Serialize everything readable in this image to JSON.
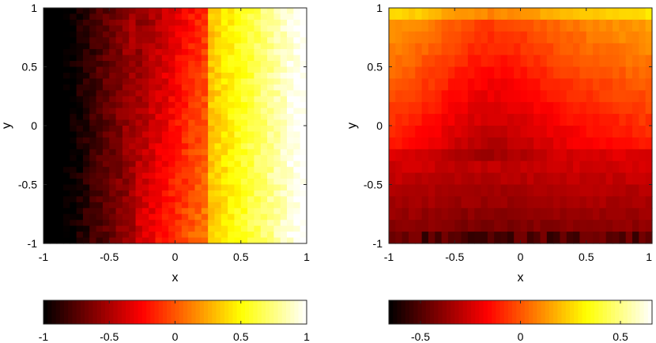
{
  "chart_data": [
    {
      "type": "heatmap",
      "title": "",
      "xlabel": "x",
      "ylabel": "y",
      "xlim": [
        -1,
        1
      ],
      "ylim": [
        -1,
        1
      ],
      "xticks": [
        "-1",
        "-0.5",
        "0",
        "0.5",
        "1"
      ],
      "yticks": [
        "-1",
        "-0.5",
        "0",
        "0.5",
        "1"
      ],
      "colormap": "hot",
      "clim": [
        -1,
        1
      ],
      "colorbar": {
        "location": "bottom",
        "ticks": [
          "-1",
          "-0.5",
          "0",
          "0.5",
          "1"
        ]
      },
      "grid": false
    },
    {
      "type": "heatmap",
      "title": "",
      "xlabel": "x",
      "ylabel": "y",
      "xlim": [
        -1,
        1
      ],
      "ylim": [
        -1,
        1
      ],
      "xticks": [
        "-1",
        "-0.5",
        "0",
        "0.5",
        "1"
      ],
      "yticks": [
        "-1",
        "-0.5",
        "0",
        "0.5",
        "1"
      ],
      "colormap": "hot",
      "clim": [
        -0.7,
        0.7
      ],
      "colorbar": {
        "location": "bottom",
        "ticks": [
          "-0.5",
          "0",
          "0.5"
        ]
      },
      "grid": false
    }
  ]
}
